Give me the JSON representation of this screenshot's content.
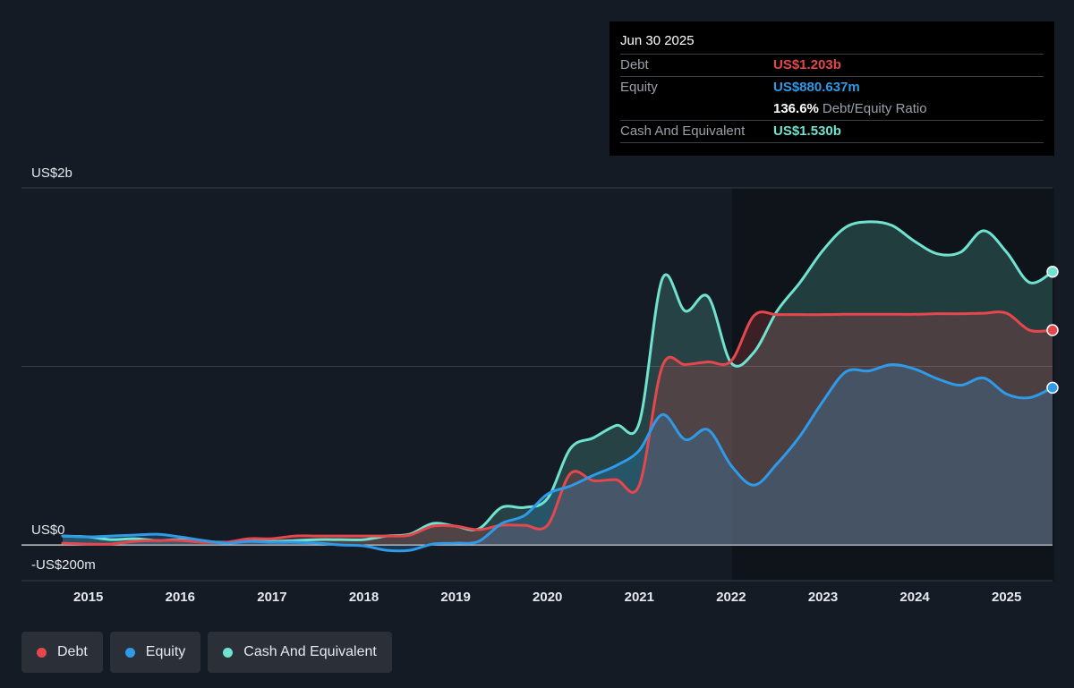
{
  "tooltip": {
    "date": "Jun 30 2025",
    "debt_label": "Debt",
    "debt_value": "US$1.203b",
    "equity_label": "Equity",
    "equity_value": "US$880.637m",
    "ratio_value": "136.6%",
    "ratio_label": "Debt/Equity Ratio",
    "cash_label": "Cash And Equivalent",
    "cash_value": "US$1.530b"
  },
  "legend": {
    "debt": "Debt",
    "equity": "Equity",
    "cash": "Cash And Equivalent"
  },
  "colors": {
    "debt": "#e5474c",
    "equity": "#2f9ae8",
    "cash": "#6fe3cf",
    "background": "#151b24",
    "tooltip_bg": "#000000"
  },
  "chart_data": {
    "type": "area",
    "y_unit": "US$ millions",
    "ylim": [
      -200,
      2000
    ],
    "y_tick_labels": [
      {
        "value": 2000,
        "label": "US$2b"
      },
      {
        "value": 0,
        "label": "US$0"
      },
      {
        "value": -200,
        "label": "-US$200m"
      }
    ],
    "x_tick_labels": [
      "2015",
      "2016",
      "2017",
      "2018",
      "2019",
      "2020",
      "2021",
      "2022",
      "2023",
      "2024",
      "2025"
    ],
    "xlim": [
      2014.72,
      2025.5
    ],
    "grid": true,
    "legend_position": "bottom-left",
    "series": [
      {
        "name": "Debt",
        "points": [
          [
            2014.72,
            10
          ],
          [
            2015.0,
            5
          ],
          [
            2015.25,
            5
          ],
          [
            2015.5,
            20
          ],
          [
            2015.75,
            25
          ],
          [
            2016.0,
            25
          ],
          [
            2016.25,
            15
          ],
          [
            2016.5,
            15
          ],
          [
            2016.75,
            35
          ],
          [
            2017.0,
            35
          ],
          [
            2017.25,
            50
          ],
          [
            2017.5,
            50
          ],
          [
            2017.75,
            50
          ],
          [
            2018.0,
            50
          ],
          [
            2018.25,
            50
          ],
          [
            2018.5,
            55
          ],
          [
            2018.75,
            105
          ],
          [
            2019.0,
            105
          ],
          [
            2019.25,
            85
          ],
          [
            2019.5,
            110
          ],
          [
            2019.75,
            110
          ],
          [
            2020.0,
            110
          ],
          [
            2020.25,
            400
          ],
          [
            2020.5,
            360
          ],
          [
            2020.75,
            365
          ],
          [
            2021.0,
            335
          ],
          [
            2021.25,
            1000
          ],
          [
            2021.5,
            1010
          ],
          [
            2021.75,
            1025
          ],
          [
            2022.0,
            1030
          ],
          [
            2022.25,
            1285
          ],
          [
            2022.5,
            1290
          ],
          [
            2022.75,
            1290
          ],
          [
            2023.0,
            1290
          ],
          [
            2023.25,
            1292
          ],
          [
            2023.5,
            1292
          ],
          [
            2023.75,
            1292
          ],
          [
            2024.0,
            1292
          ],
          [
            2024.25,
            1295
          ],
          [
            2024.5,
            1295
          ],
          [
            2024.75,
            1298
          ],
          [
            2025.0,
            1298
          ],
          [
            2025.25,
            1203
          ],
          [
            2025.5,
            1203
          ]
        ]
      },
      {
        "name": "Equity",
        "points": [
          [
            2014.72,
            50
          ],
          [
            2015.0,
            45
          ],
          [
            2015.25,
            50
          ],
          [
            2015.5,
            55
          ],
          [
            2015.75,
            60
          ],
          [
            2016.0,
            45
          ],
          [
            2016.25,
            25
          ],
          [
            2016.5,
            10
          ],
          [
            2016.75,
            20
          ],
          [
            2017.0,
            15
          ],
          [
            2017.25,
            15
          ],
          [
            2017.5,
            10
          ],
          [
            2017.75,
            0
          ],
          [
            2018.0,
            -5
          ],
          [
            2018.25,
            -30
          ],
          [
            2018.5,
            -30
          ],
          [
            2018.75,
            5
          ],
          [
            2019.0,
            10
          ],
          [
            2019.25,
            20
          ],
          [
            2019.5,
            120
          ],
          [
            2019.75,
            165
          ],
          [
            2020.0,
            285
          ],
          [
            2020.25,
            330
          ],
          [
            2020.5,
            390
          ],
          [
            2020.75,
            445
          ],
          [
            2021.0,
            530
          ],
          [
            2021.25,
            730
          ],
          [
            2021.5,
            590
          ],
          [
            2021.75,
            645
          ],
          [
            2022.0,
            445
          ],
          [
            2022.25,
            335
          ],
          [
            2022.5,
            455
          ],
          [
            2022.75,
            610
          ],
          [
            2023.0,
            805
          ],
          [
            2023.25,
            970
          ],
          [
            2023.5,
            975
          ],
          [
            2023.75,
            1010
          ],
          [
            2024.0,
            985
          ],
          [
            2024.25,
            930
          ],
          [
            2024.5,
            895
          ],
          [
            2024.75,
            935
          ],
          [
            2025.0,
            845
          ],
          [
            2025.25,
            825
          ],
          [
            2025.5,
            880.637
          ]
        ]
      },
      {
        "name": "Cash And Equivalent",
        "points": [
          [
            2014.72,
            50
          ],
          [
            2015.0,
            45
          ],
          [
            2015.25,
            30
          ],
          [
            2015.5,
            35
          ],
          [
            2015.75,
            25
          ],
          [
            2016.0,
            30
          ],
          [
            2016.25,
            20
          ],
          [
            2016.5,
            15
          ],
          [
            2016.75,
            25
          ],
          [
            2017.0,
            20
          ],
          [
            2017.25,
            25
          ],
          [
            2017.5,
            30
          ],
          [
            2017.75,
            30
          ],
          [
            2018.0,
            30
          ],
          [
            2018.25,
            50
          ],
          [
            2018.5,
            60
          ],
          [
            2018.75,
            120
          ],
          [
            2019.0,
            105
          ],
          [
            2019.25,
            90
          ],
          [
            2019.5,
            210
          ],
          [
            2019.75,
            210
          ],
          [
            2020.0,
            260
          ],
          [
            2020.25,
            540
          ],
          [
            2020.5,
            600
          ],
          [
            2020.75,
            670
          ],
          [
            2021.0,
            685
          ],
          [
            2021.25,
            1490
          ],
          [
            2021.5,
            1310
          ],
          [
            2021.75,
            1390
          ],
          [
            2022.0,
            1020
          ],
          [
            2022.25,
            1080
          ],
          [
            2022.5,
            1310
          ],
          [
            2022.75,
            1470
          ],
          [
            2023.0,
            1650
          ],
          [
            2023.25,
            1780
          ],
          [
            2023.5,
            1810
          ],
          [
            2023.75,
            1790
          ],
          [
            2024.0,
            1700
          ],
          [
            2024.25,
            1630
          ],
          [
            2024.5,
            1640
          ],
          [
            2024.75,
            1760
          ],
          [
            2025.0,
            1640
          ],
          [
            2025.25,
            1470
          ],
          [
            2025.5,
            1530
          ]
        ]
      }
    ]
  }
}
